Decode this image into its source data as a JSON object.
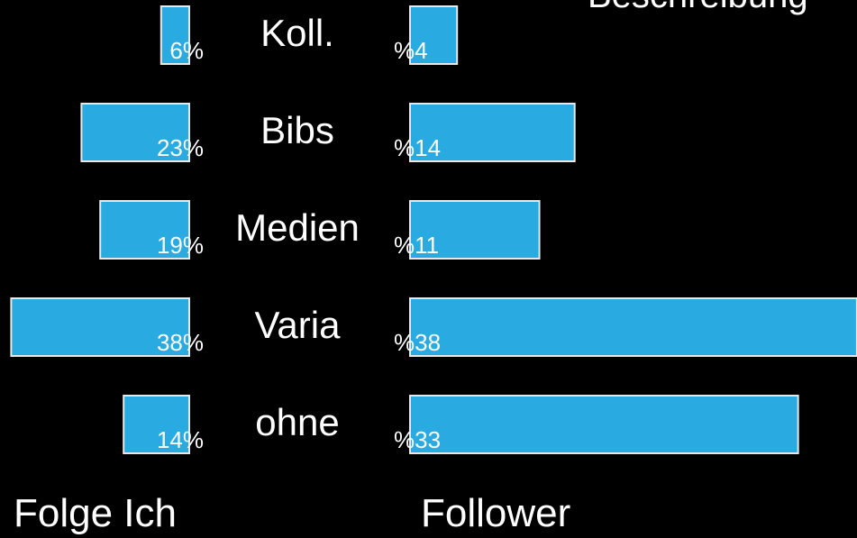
{
  "chart_data": {
    "type": "butterfly",
    "title": "Beschreibung",
    "categories": [
      "Koll.",
      "Bibs",
      "Medien",
      "Varia",
      "ohne"
    ],
    "series": [
      {
        "name": "Folge Ich",
        "color": "#29abe2",
        "values": [
          6,
          23,
          19,
          38,
          14
        ],
        "value_labels": [
          "6%",
          "23%",
          "19%",
          "38%",
          "14%"
        ]
      },
      {
        "name": "Follower",
        "color": "#29abe2",
        "values": [
          4,
          14,
          11,
          38,
          33
        ],
        "value_labels": [
          "%4",
          "%14",
          "%11",
          "%38",
          "%33"
        ]
      }
    ]
  }
}
